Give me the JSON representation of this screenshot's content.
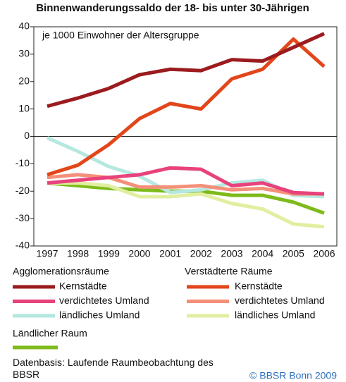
{
  "chart_data": {
    "type": "line",
    "title": "Binnenwanderungssaldo der 18- bis unter 30-Jährigen",
    "annotation": "je 1000 Einwohner der Altersgruppe",
    "categories": [
      "1997",
      "1998",
      "1999",
      "2000",
      "2001",
      "2002",
      "2003",
      "2004",
      "2005",
      "2006"
    ],
    "ylim": [
      -40,
      40
    ],
    "yticks": [
      -40,
      -30,
      -20,
      -10,
      0,
      10,
      20,
      30,
      40
    ],
    "legend_groups": [
      "Agglomerationsräume",
      "Verstädterte Räume",
      "Ländlicher Raum"
    ],
    "series": [
      {
        "name": "Kernstädte",
        "color": "#9b1b1e",
        "values": [
          11,
          14,
          17.5,
          22.5,
          24.5,
          24,
          28,
          27.5,
          32.5,
          37.5
        ]
      },
      {
        "name": "Kernstädte",
        "color": "#e2461a",
        "values": [
          -14,
          -10.5,
          -3,
          6.5,
          12,
          10,
          21,
          24.5,
          35.5,
          25.5
        ]
      },
      {
        "name": "verdichtetes Umland",
        "color": "#e8427c",
        "values": [
          -17,
          -16,
          -15,
          -14,
          -11.5,
          -12,
          -18,
          -17,
          -20.5,
          -21
        ]
      },
      {
        "name": "verdichtetes Umland",
        "color": "#f4907a",
        "values": [
          -15,
          -14,
          -15,
          -18.5,
          -18.5,
          -18,
          -19.5,
          -19,
          -21,
          -21
        ]
      },
      {
        "name": "ländliches Umland",
        "color": "#b5e8e0",
        "values": [
          -0.5,
          -5.5,
          -11,
          -14.5,
          -20.5,
          -19.5,
          -17,
          -16,
          -21.5,
          -22
        ]
      },
      {
        "name": "ländliches Umland",
        "color": "#e2eea0",
        "values": [
          -17,
          -17,
          -18,
          -22,
          -22,
          -21,
          -24.5,
          -26.5,
          -32,
          -33
        ]
      },
      {
        "name": "Ländlicher Raum",
        "color": "#7dba1a",
        "values": [
          -17,
          -18,
          -19,
          -19.5,
          -20,
          -20,
          -21.5,
          -21.5,
          -24,
          -28
        ]
      }
    ],
    "source": "Datenbasis: Laufende Raumbeobachtung des BBSR",
    "copyright": "© BBSR Bonn 2009"
  }
}
